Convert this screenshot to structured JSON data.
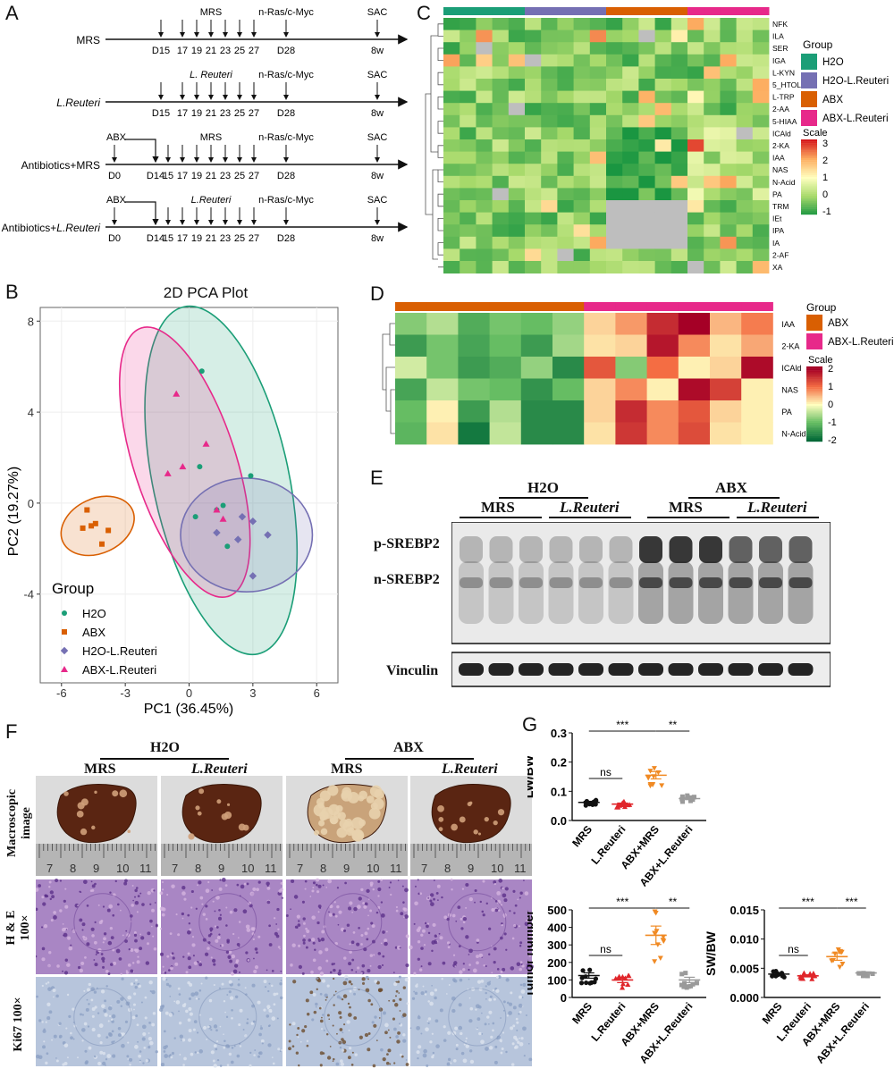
{
  "panels": {
    "A": "A",
    "B": "B",
    "C": "C",
    "D": "D",
    "E": "E",
    "F": "F",
    "G": "G"
  },
  "timeline": {
    "rows": [
      {
        "label": "MRS",
        "italic": false,
        "top_label": "MRS",
        "abx": false
      },
      {
        "label": "L.Reuteri",
        "italic": true,
        "top_label": "L. Reuteri",
        "abx": false
      },
      {
        "label": "Antibiotics+MRS",
        "italic": false,
        "top_label": "MRS",
        "abx": true
      },
      {
        "label": "Antibiotics+L.Reuteri",
        "italic": "partial",
        "top_label": "L.Reuteri",
        "abx": true
      }
    ],
    "days": [
      "D15",
      "17",
      "19",
      "21",
      "23",
      "25",
      "27"
    ],
    "days_abx": [
      "D14",
      "15",
      "17",
      "19",
      "21",
      "23",
      "25",
      "27"
    ],
    "d0": "D0",
    "abx_label": "ABX",
    "tumor_label": "n-Ras/c-Myc",
    "tumor_day": "D28",
    "sac_label": "SAC",
    "sac_day": "8w",
    "antibiotics_prefix": "Antibiotics+",
    "lreuteri": "L.Reuteri"
  },
  "pca": {
    "title": "2D PCA Plot",
    "xlabel": "PC1 (36.45%)",
    "ylabel": "PC2 (19.27%)",
    "legend_title": "Group",
    "xticks": [
      "-6",
      "-3",
      "0",
      "3",
      "6"
    ],
    "yticks": [
      "8",
      "4",
      "0",
      "-4"
    ]
  },
  "heatmap_c": {
    "rows": [
      "NFK",
      "ILA",
      "SER",
      "IGA",
      "L-KYN",
      "5_HTOL",
      "L-TRP",
      "2-AA",
      "5-HIAA",
      "ICAld",
      "2-KA",
      "IAA",
      "NAS",
      "N-Acid",
      "PA",
      "TRM",
      "IEt",
      "IPA",
      "IA",
      "2-AF",
      "XA"
    ],
    "legend_title": "Group",
    "groups": [
      {
        "name": "H2O",
        "color": "#1b9e77"
      },
      {
        "name": "H2O-L.Reuteri",
        "color": "#7570b3"
      },
      {
        "name": "ABX",
        "color": "#d95f02"
      },
      {
        "name": "ABX-L.Reuteri",
        "color": "#e7298a"
      }
    ],
    "scale_title": "Scale",
    "scale_ticks": [
      "3",
      "2",
      "1",
      "0",
      "-1"
    ]
  },
  "heatmap_d": {
    "rows": [
      "IAA",
      "2-KA",
      "ICAld",
      "NAS",
      "PA",
      "N-Acid"
    ],
    "legend_title": "Group",
    "groups": [
      {
        "name": "ABX",
        "color": "#d95f02"
      },
      {
        "name": "ABX-L.Reuteri",
        "color": "#e7298a"
      }
    ],
    "scale_title": "Scale",
    "scale_ticks": [
      "2",
      "1",
      "0",
      "-1",
      "-2"
    ]
  },
  "western": {
    "group_h2o": "H2O",
    "group_abx": "ABX",
    "mrs": "MRS",
    "lreuteri": "L.Reuteri",
    "band_p": "p-SREBP2",
    "band_n": "n-SREBP2",
    "band_vinculin": "Vinculin"
  },
  "histology": {
    "group_h2o": "H2O",
    "group_abx": "ABX",
    "mrs": "MRS",
    "lreuteri": "L.Reuteri",
    "row_macro": "Macroscopic image",
    "row_he": "H & E 100×",
    "row_ki67": "Ki67 100×",
    "ruler_numbers": [
      "7",
      "8",
      "9",
      "10",
      "11"
    ]
  },
  "chart_data": [
    {
      "type": "scatter",
      "ylabel": "LW/BW",
      "ylim": [
        0.0,
        0.3
      ],
      "yticks": [
        "0.3",
        "0.2",
        "0.1",
        "0.0"
      ],
      "categories": [
        "MRS",
        "L.Reuteri",
        "ABX+MRS",
        "ABX+L.Reuteri"
      ],
      "means": [
        0.062,
        0.056,
        0.155,
        0.075
      ],
      "annotations": [
        {
          "from": "MRS",
          "to": "L.Reuteri",
          "text": "ns"
        },
        {
          "from": "MRS",
          "to": "ABX+MRS",
          "text": "***"
        },
        {
          "from": "ABX+MRS",
          "to": "ABX+L.Reuteri",
          "text": "**"
        }
      ]
    },
    {
      "type": "scatter",
      "ylabel": "Tumor number",
      "ylim": [
        0,
        500
      ],
      "yticks": [
        "500",
        "400",
        "300",
        "200",
        "100",
        "0"
      ],
      "categories": [
        "MRS",
        "L.Reuteri",
        "ABX+MRS",
        "ABX+L.Reuteri"
      ],
      "means": [
        125,
        100,
        355,
        100
      ],
      "annotations": [
        {
          "from": "MRS",
          "to": "L.Reuteri",
          "text": "ns"
        },
        {
          "from": "MRS",
          "to": "ABX+MRS",
          "text": "***"
        },
        {
          "from": "ABX+MRS",
          "to": "ABX+L.Reuteri",
          "text": "**"
        }
      ]
    },
    {
      "type": "scatter",
      "ylabel": "SW/BW",
      "ylim": [
        0.0,
        0.015
      ],
      "yticks": [
        "0.015",
        "0.010",
        "0.005",
        "0.000"
      ],
      "categories": [
        "MRS",
        "L.Reuteri",
        "ABX+MRS",
        "ABX+L.Reuteri"
      ],
      "means": [
        0.004,
        0.0037,
        0.007,
        0.0042
      ],
      "annotations": [
        {
          "from": "MRS",
          "to": "L.Reuteri",
          "text": "ns"
        },
        {
          "from": "MRS",
          "to": "ABX+MRS",
          "text": "***"
        },
        {
          "from": "ABX+MRS",
          "to": "ABX+L.Reuteri",
          "text": "***"
        }
      ]
    }
  ]
}
